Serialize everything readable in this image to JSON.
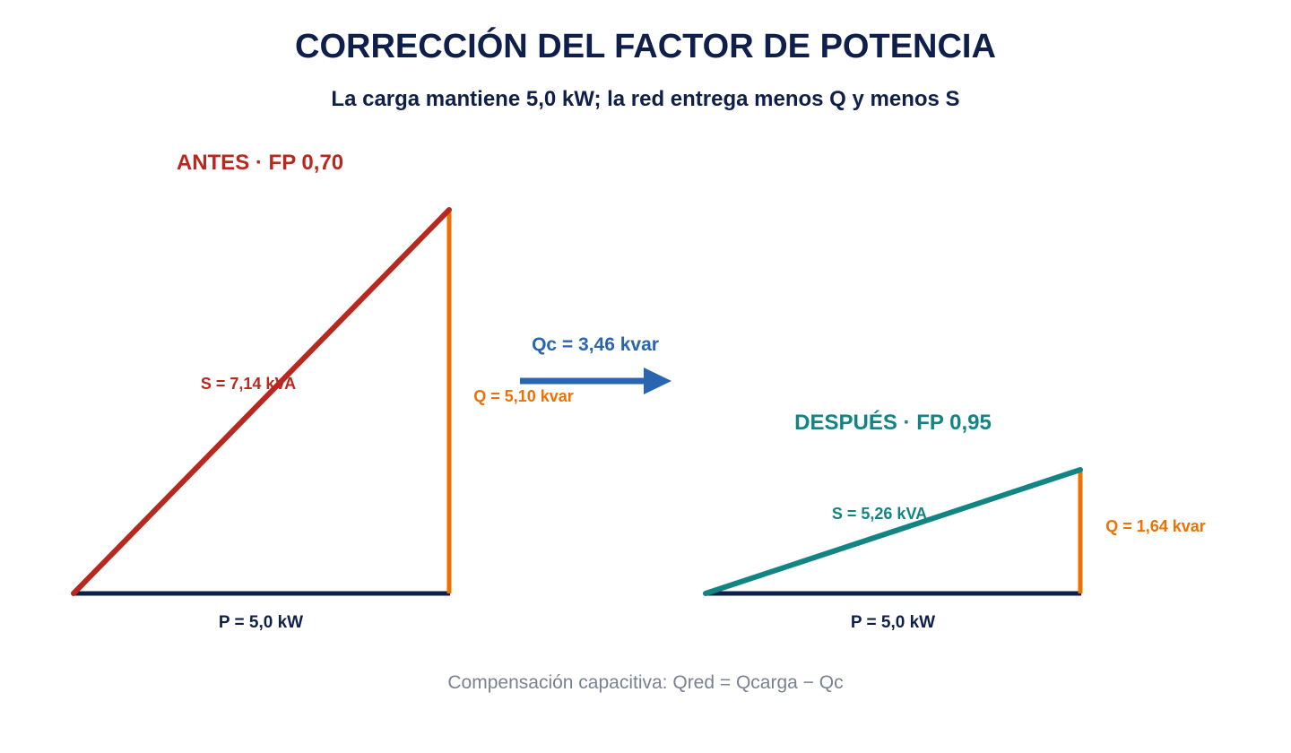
{
  "title": "CORRECCIÓN DEL FACTOR DE POTENCIA",
  "subtitle": "La carga mantiene 5,0 kW; la red entrega menos Q y menos S",
  "before": {
    "heading": "ANTES · FP 0,70",
    "power_factor": 0.7,
    "p_label": "P = 5,0 kW",
    "q_label": "Q = 5,10 kvar",
    "s_label": "S = 7,14 kVA",
    "p_kw": 5.0,
    "q_kvar": 5.1,
    "s_kva": 7.14
  },
  "after": {
    "heading": "DESPUÉS · FP 0,95",
    "power_factor": 0.95,
    "p_label": "P = 5,0 kW",
    "q_label": "Q = 1,64 kvar",
    "s_label": "S = 5,26 kVA",
    "p_kw": 5.0,
    "q_kvar": 1.64,
    "s_kva": 5.26
  },
  "compensation": {
    "label": "Qc = 3,46 kvar",
    "qc_kvar": 3.46
  },
  "footer": "Compensación capacitiva: Qred = Qcarga − Qc",
  "colors": {
    "title": "#0f1f4b",
    "before_accent": "#b8281e",
    "after_accent": "#138484",
    "reactive": "#ee7203",
    "active": "#0f1f4b",
    "arrow": "#2a66b0",
    "footer": "#7a8190"
  }
}
